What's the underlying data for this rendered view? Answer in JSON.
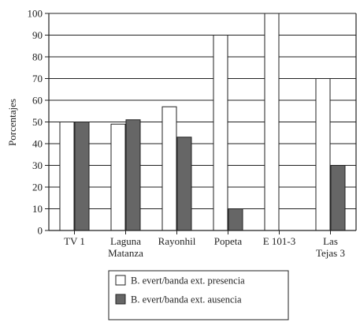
{
  "chart_data": {
    "type": "bar",
    "title": "",
    "xlabel": "",
    "ylabel": "Porcentajes",
    "ylim": [
      0,
      100
    ],
    "yticks": [
      0,
      10,
      20,
      30,
      40,
      50,
      60,
      70,
      80,
      90,
      100
    ],
    "grid": true,
    "legend_position": "bottom",
    "categories": [
      [
        "TV 1"
      ],
      [
        "Laguna",
        "Matanza"
      ],
      [
        "Rayonhil"
      ],
      [
        "Popeta"
      ],
      [
        "E 101-3"
      ],
      [
        "Las",
        "Tejas 3"
      ]
    ],
    "series": [
      {
        "name": "B. evert/banda ext. presencia",
        "color": "#ffffff",
        "values": [
          50,
          49,
          57,
          90,
          100,
          70
        ]
      },
      {
        "name": "B. evert/banda ext. ausencia",
        "color": "#666666",
        "values": [
          50,
          51,
          43,
          10,
          0,
          30
        ]
      }
    ]
  }
}
